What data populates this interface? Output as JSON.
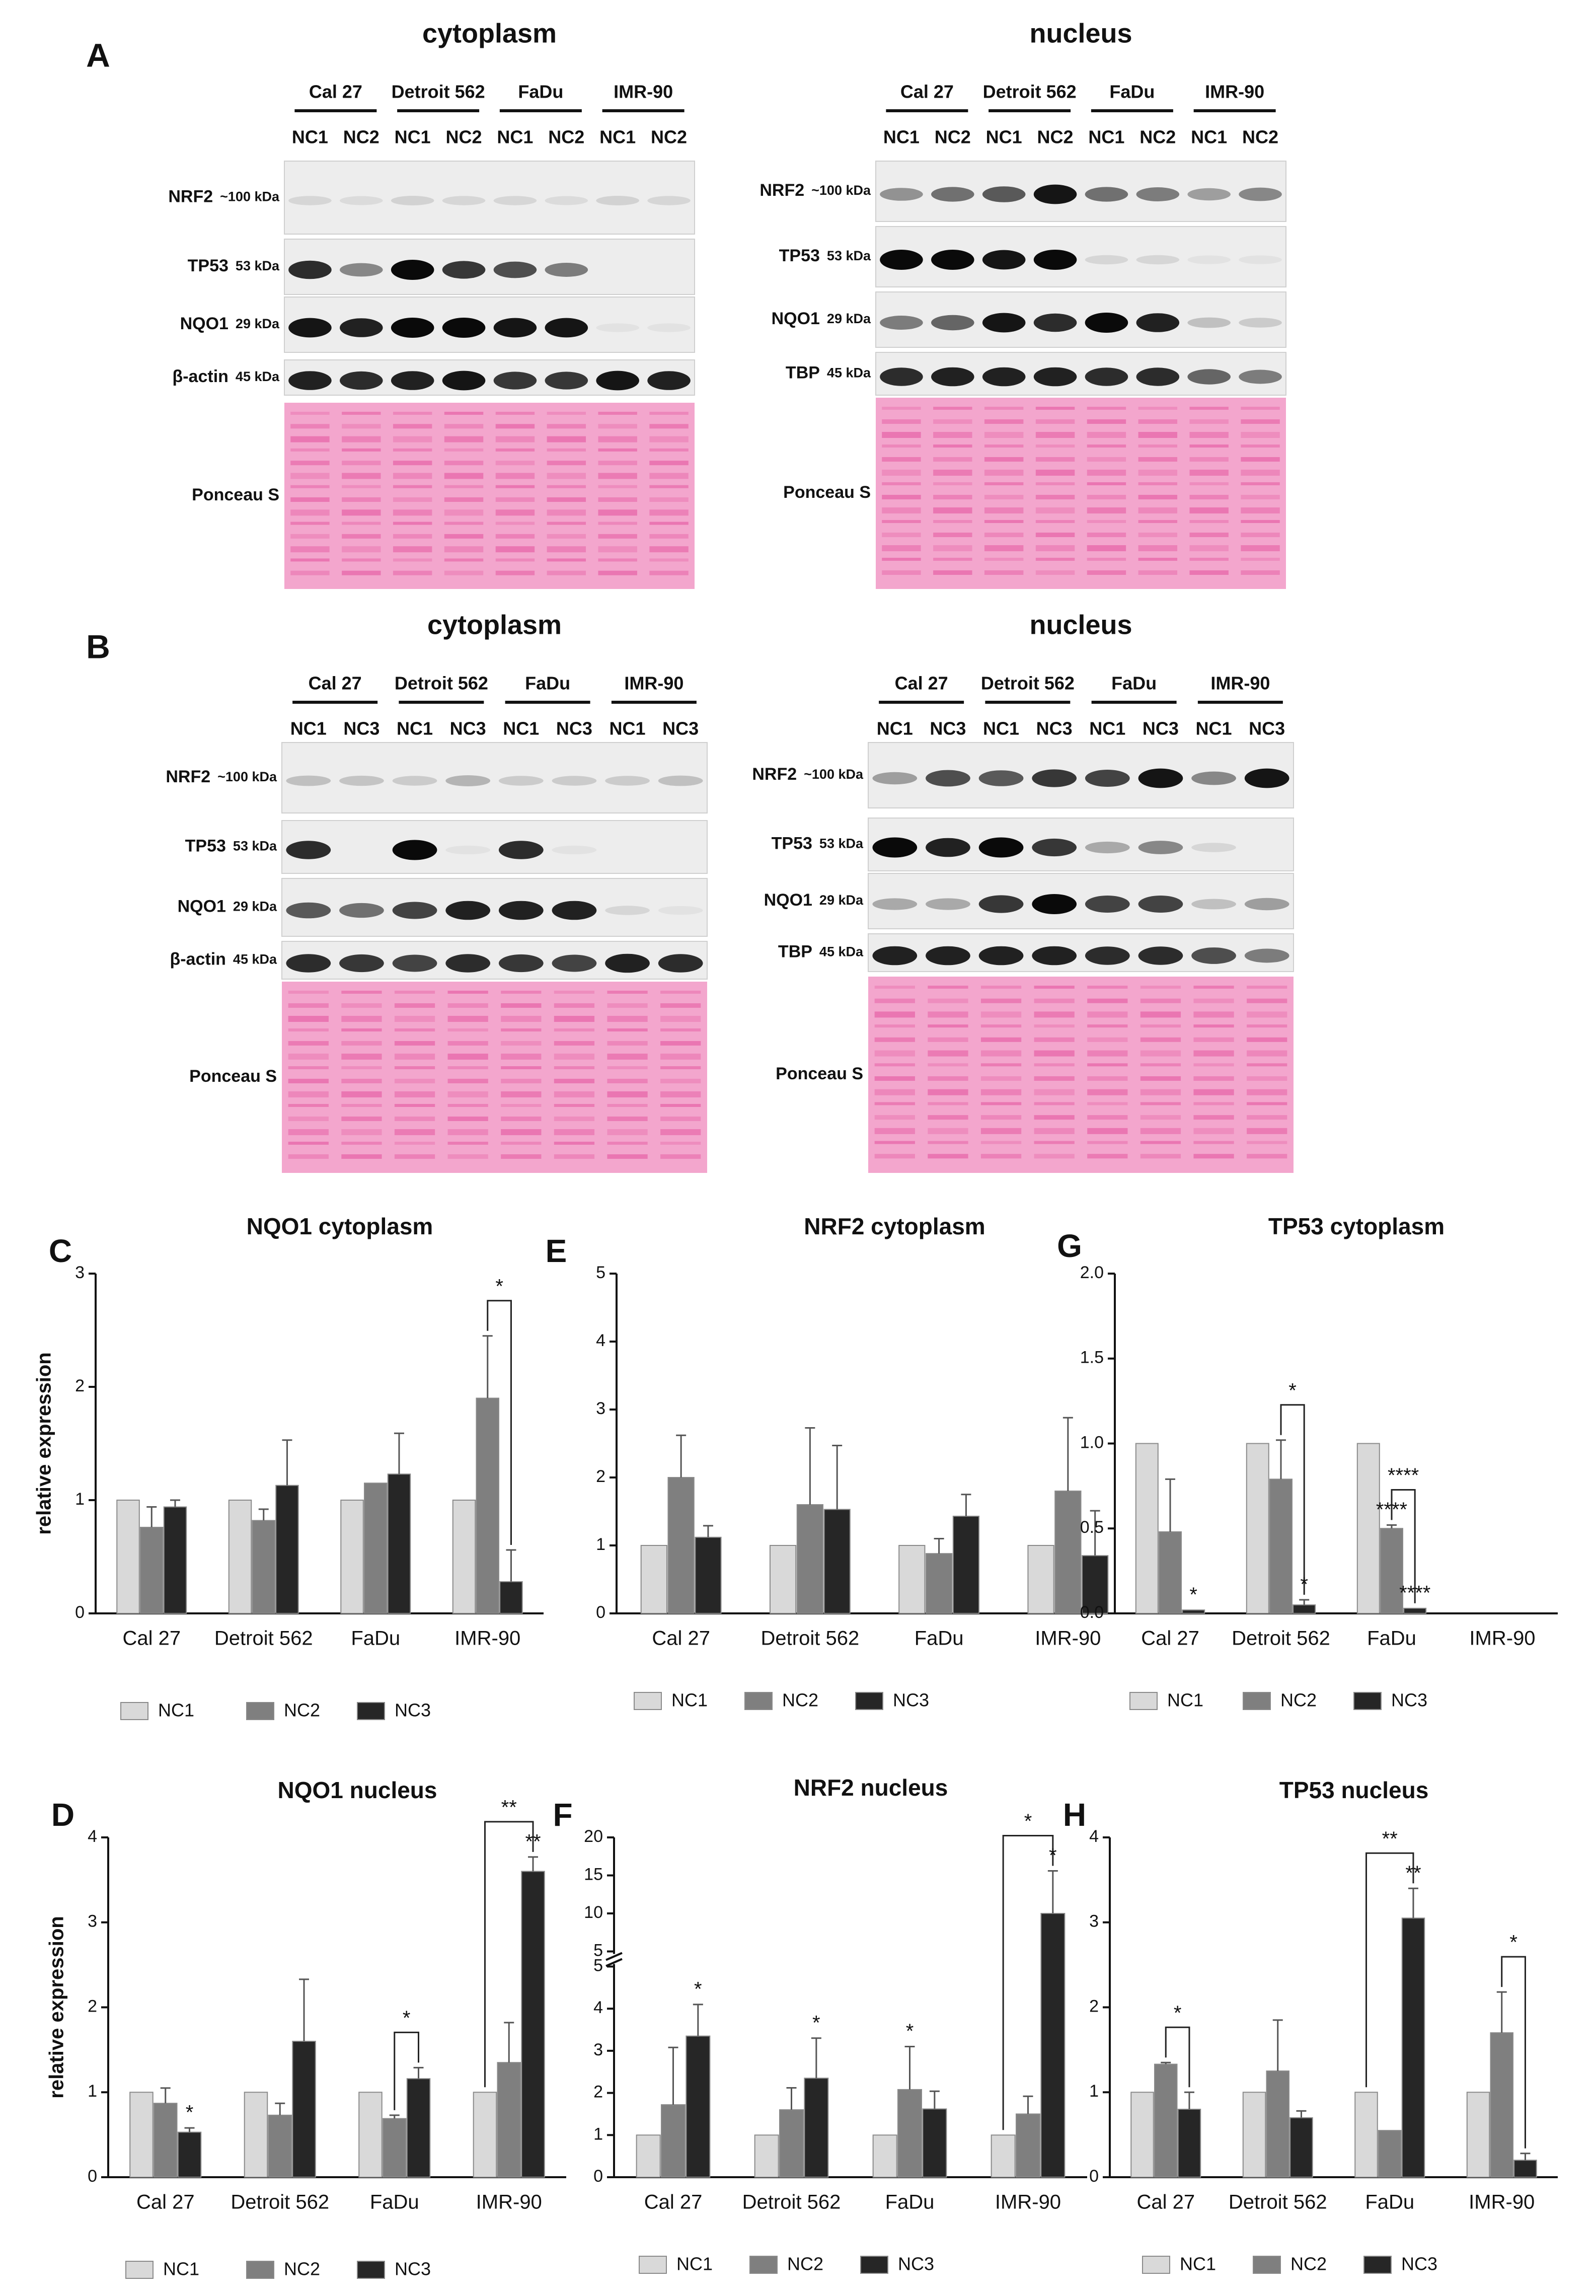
{
  "blots": [
    {
      "panel": "A",
      "title_left": "cytoplasm",
      "title_right": "nucleus",
      "cell_lines": [
        "Cal 27",
        "Detroit 562",
        "FaDu",
        "IMR-90"
      ],
      "lanes": [
        "NC1",
        "NC2"
      ],
      "left_rows": [
        {
          "protein": "NRF2",
          "size": "~100 kDa",
          "kind": "band",
          "intensity": [
            0.1,
            0.08,
            0.12,
            0.1,
            0.1,
            0.08,
            0.12,
            0.1
          ]
        },
        {
          "protein": "TP53",
          "size": "53 kDa",
          "kind": "band",
          "intensity": [
            0.85,
            0.45,
            1.0,
            0.8,
            0.7,
            0.5,
            0.0,
            0.0
          ]
        },
        {
          "protein": "NQO1",
          "size": "29 kDa",
          "kind": "band",
          "intensity": [
            0.95,
            0.9,
            1.0,
            1.0,
            0.95,
            0.95,
            0.05,
            0.05
          ]
        },
        {
          "protein": "β-actin",
          "size": "45 kDa",
          "kind": "band",
          "intensity": [
            0.9,
            0.85,
            0.9,
            0.95,
            0.8,
            0.8,
            0.95,
            0.9
          ]
        },
        {
          "protein": "Ponceau S",
          "size": "",
          "kind": "stain"
        }
      ],
      "right_rows": [
        {
          "protein": "NRF2",
          "size": "~100 kDa",
          "kind": "band",
          "intensity": [
            0.4,
            0.55,
            0.65,
            0.95,
            0.55,
            0.5,
            0.35,
            0.45
          ]
        },
        {
          "protein": "TP53",
          "size": "53 kDa",
          "kind": "band",
          "intensity": [
            1.0,
            1.0,
            0.95,
            1.0,
            0.1,
            0.1,
            0.05,
            0.05
          ]
        },
        {
          "protein": "NQO1",
          "size": "29 kDa",
          "kind": "band",
          "intensity": [
            0.5,
            0.6,
            0.95,
            0.85,
            1.0,
            0.9,
            0.2,
            0.15
          ]
        },
        {
          "protein": "TBP",
          "size": "45 kDa",
          "kind": "band",
          "intensity": [
            0.85,
            0.9,
            0.9,
            0.9,
            0.85,
            0.85,
            0.6,
            0.5
          ]
        },
        {
          "protein": "Ponceau S",
          "size": "",
          "kind": "stain"
        }
      ]
    },
    {
      "panel": "B",
      "title_left": "cytoplasm",
      "title_right": "nucleus",
      "cell_lines": [
        "Cal 27",
        "Detroit 562",
        "FaDu",
        "IMR-90"
      ],
      "lanes": [
        "NC1",
        "NC3"
      ],
      "left_rows": [
        {
          "protein": "NRF2",
          "size": "~100 kDa",
          "kind": "band",
          "intensity": [
            0.2,
            0.18,
            0.15,
            0.25,
            0.15,
            0.15,
            0.15,
            0.2
          ]
        },
        {
          "protein": "TP53",
          "size": "53 kDa",
          "kind": "band",
          "intensity": [
            0.85,
            0.0,
            1.0,
            0.05,
            0.85,
            0.05,
            0.0,
            0.0
          ]
        },
        {
          "protein": "NQO1",
          "size": "29 kDa",
          "kind": "band",
          "intensity": [
            0.65,
            0.55,
            0.75,
            0.9,
            0.9,
            0.9,
            0.1,
            0.05
          ]
        },
        {
          "protein": "β-actin",
          "size": "45 kDa",
          "kind": "band",
          "intensity": [
            0.85,
            0.8,
            0.75,
            0.85,
            0.8,
            0.75,
            0.9,
            0.85
          ]
        },
        {
          "protein": "Ponceau S",
          "size": "",
          "kind": "stain"
        }
      ],
      "right_rows": [
        {
          "protein": "NRF2",
          "size": "~100 kDa",
          "kind": "band",
          "intensity": [
            0.35,
            0.7,
            0.65,
            0.8,
            0.75,
            0.95,
            0.45,
            0.95
          ]
        },
        {
          "protein": "TP53",
          "size": "53 kDa",
          "kind": "band",
          "intensity": [
            1.0,
            0.9,
            1.0,
            0.8,
            0.3,
            0.45,
            0.1,
            0.0
          ]
        },
        {
          "protein": "NQO1",
          "size": "29 kDa",
          "kind": "band",
          "intensity": [
            0.3,
            0.3,
            0.8,
            1.0,
            0.75,
            0.75,
            0.2,
            0.35
          ]
        },
        {
          "protein": "TBP",
          "size": "45 kDa",
          "kind": "band",
          "intensity": [
            0.9,
            0.9,
            0.9,
            0.9,
            0.85,
            0.85,
            0.7,
            0.5
          ]
        },
        {
          "protein": "Ponceau S",
          "size": "",
          "kind": "stain"
        }
      ]
    }
  ],
  "legend_labels": [
    "NC1",
    "NC2",
    "NC3"
  ],
  "colors": {
    "NC1": "#d9d9d9",
    "NC2": "#7f7f7f",
    "NC3": "#262626",
    "ponceau": "#f3a6cd",
    "ponceau_band": "#e65ea4"
  },
  "chart_data": [
    {
      "panel": "C",
      "type": "bar",
      "title": "NQO1 cytoplasm",
      "ylabel": "relative expression",
      "xlabel": "",
      "categories": [
        "Cal 27",
        "Detroit 562",
        "FaDu",
        "IMR-90"
      ],
      "ylim": [
        0,
        3
      ],
      "yticks": [
        "0",
        "1",
        "2",
        "3"
      ],
      "series": [
        {
          "name": "NC1",
          "values": [
            1,
            1,
            1,
            1
          ],
          "errors": [
            0,
            0,
            0,
            0
          ]
        },
        {
          "name": "NC2",
          "values": [
            0.76,
            0.82,
            1.15,
            1.9
          ],
          "errors": [
            0.18,
            0.1,
            0,
            0.55
          ]
        },
        {
          "name": "NC3",
          "values": [
            0.94,
            1.13,
            1.23,
            0.28
          ],
          "errors": [
            0.06,
            0.4,
            0.36,
            0.28
          ]
        }
      ],
      "annotations": [
        {
          "text": "*",
          "category": 3,
          "from": 1,
          "to": 2
        }
      ]
    },
    {
      "panel": "E",
      "type": "bar",
      "title": "NRF2 cytoplasm",
      "ylabel": "",
      "xlabel": "",
      "categories": [
        "Cal 27",
        "Detroit 562",
        "FaDu",
        "IMR-90"
      ],
      "ylim": [
        0,
        5
      ],
      "yticks": [
        "0",
        "1",
        "2",
        "3",
        "4",
        "5"
      ],
      "series": [
        {
          "name": "NC1",
          "values": [
            1,
            1,
            1,
            1
          ],
          "errors": [
            0,
            0,
            0,
            0
          ]
        },
        {
          "name": "NC2",
          "values": [
            2.0,
            1.6,
            0.88,
            1.8
          ],
          "errors": [
            0.62,
            1.13,
            0.22,
            1.08
          ]
        },
        {
          "name": "NC3",
          "values": [
            1.12,
            1.53,
            1.43,
            0.85
          ],
          "errors": [
            0.17,
            0.94,
            0.32,
            0.66
          ]
        }
      ],
      "annotations": []
    },
    {
      "panel": "G",
      "type": "bar",
      "title": "TP53 cytoplasm",
      "ylabel": "",
      "xlabel": "",
      "categories": [
        "Cal 27",
        "Detroit 562",
        "FaDu",
        "IMR-90"
      ],
      "ylim": [
        0,
        2
      ],
      "yticks": [
        "0.0",
        "0.5",
        "1.0",
        "1.5",
        "2.0"
      ],
      "series": [
        {
          "name": "NC1",
          "values": [
            1,
            1,
            1,
            0
          ],
          "errors": [
            0,
            0,
            0,
            0
          ]
        },
        {
          "name": "NC2",
          "values": [
            0.48,
            0.79,
            0.5,
            0
          ],
          "errors": [
            0.31,
            0.23,
            0.02,
            0
          ]
        },
        {
          "name": "NC3",
          "values": [
            0.02,
            0.05,
            0.03,
            0
          ],
          "errors": [
            0,
            0.03,
            0,
            0
          ]
        }
      ],
      "annotations": [
        {
          "text": "*",
          "category": 0,
          "series": 2
        },
        {
          "text": "*",
          "category": 1,
          "from": 1,
          "to": 2
        },
        {
          "text": "*",
          "category": 1,
          "series": 2
        },
        {
          "text": "****",
          "category": 2,
          "series": 1
        },
        {
          "text": "****",
          "category": 2,
          "from": 1,
          "to": 2
        },
        {
          "text": "****",
          "category": 2,
          "series": 2
        }
      ]
    },
    {
      "panel": "D",
      "type": "bar",
      "title": "NQO1 nucleus",
      "ylabel": "relative expression",
      "xlabel": "",
      "categories": [
        "Cal 27",
        "Detroit 562",
        "FaDu",
        "IMR-90"
      ],
      "ylim": [
        0,
        4
      ],
      "yticks": [
        "0",
        "1",
        "2",
        "3",
        "4"
      ],
      "series": [
        {
          "name": "NC1",
          "values": [
            1,
            1,
            1,
            1
          ],
          "errors": [
            0,
            0,
            0,
            0
          ]
        },
        {
          "name": "NC2",
          "values": [
            0.87,
            0.73,
            0.69,
            1.35
          ],
          "errors": [
            0.18,
            0.14,
            0.04,
            0.47
          ]
        },
        {
          "name": "NC3",
          "values": [
            0.53,
            1.6,
            1.16,
            3.6
          ],
          "errors": [
            0.05,
            0.73,
            0.13,
            0.17
          ]
        }
      ],
      "annotations": [
        {
          "text": "*",
          "category": 0,
          "series": 2
        },
        {
          "text": "*",
          "category": 2,
          "from": 1,
          "to": 2
        },
        {
          "text": "**",
          "category": 3,
          "from": 0,
          "to": 2
        },
        {
          "text": "**",
          "category": 3,
          "series": 2
        }
      ]
    },
    {
      "panel": "F",
      "type": "bar",
      "title": "NRF2 nucleus",
      "ylabel": "",
      "xlabel": "",
      "categories": [
        "Cal 27",
        "Detroit 562",
        "FaDu",
        "IMR-90"
      ],
      "ylim": [
        0,
        20
      ],
      "axis_break": [
        5,
        5
      ],
      "yticks": [
        "0",
        "1",
        "2",
        "3",
        "4",
        "5",
        "5",
        "10",
        "15",
        "20"
      ],
      "series": [
        {
          "name": "NC1",
          "values": [
            1,
            1,
            1,
            1
          ],
          "errors": [
            0,
            0,
            0,
            0
          ]
        },
        {
          "name": "NC2",
          "values": [
            1.72,
            1.6,
            2.08,
            1.5
          ],
          "errors": [
            1.36,
            0.52,
            1.02,
            0.42
          ]
        },
        {
          "name": "NC3",
          "values": [
            3.35,
            2.35,
            1.62,
            10.0
          ],
          "errors": [
            0.75,
            0.95,
            0.42,
            5.6
          ]
        }
      ],
      "annotations": [
        {
          "text": "*",
          "category": 0,
          "series": 2
        },
        {
          "text": "*",
          "category": 1,
          "series": 2
        },
        {
          "text": "*",
          "category": 2,
          "series": 1
        },
        {
          "text": "*",
          "category": 3,
          "from": 0,
          "to": 2
        },
        {
          "text": "*",
          "category": 3,
          "series": 2
        }
      ]
    },
    {
      "panel": "H",
      "type": "bar",
      "title": "TP53 nucleus",
      "ylabel": "",
      "xlabel": "",
      "categories": [
        "Cal 27",
        "Detroit 562",
        "FaDu",
        "IMR-90"
      ],
      "ylim": [
        0,
        4
      ],
      "yticks": [
        "0",
        "1",
        "2",
        "3",
        "4"
      ],
      "series": [
        {
          "name": "NC1",
          "values": [
            1,
            1,
            1,
            1
          ],
          "errors": [
            0,
            0,
            0,
            0
          ]
        },
        {
          "name": "NC2",
          "values": [
            1.33,
            1.25,
            0.55,
            1.7
          ],
          "errors": [
            0.02,
            0.6,
            0,
            0.48
          ]
        },
        {
          "name": "NC3",
          "values": [
            0.8,
            0.7,
            3.05,
            0.2
          ],
          "errors": [
            0.2,
            0.08,
            0.35,
            0.08
          ]
        }
      ],
      "annotations": [
        {
          "text": "*",
          "category": 0,
          "from": 1,
          "to": 2
        },
        {
          "text": "**",
          "category": 2,
          "from": 0,
          "to": 2
        },
        {
          "text": "**",
          "category": 2,
          "series": 2
        },
        {
          "text": "*",
          "category": 3,
          "from": 1,
          "to": 2
        }
      ]
    }
  ]
}
